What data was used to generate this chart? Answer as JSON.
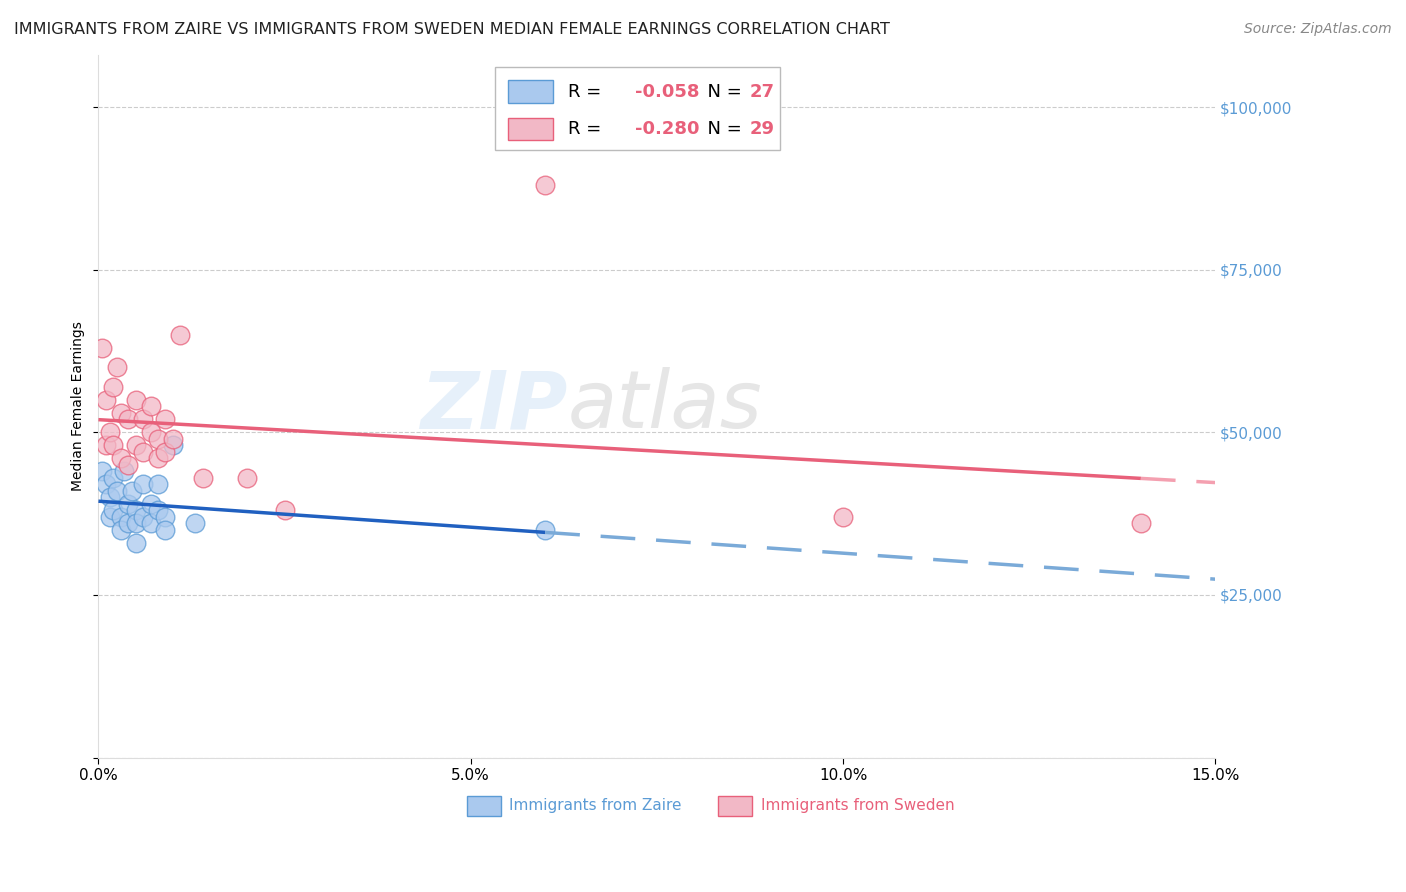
{
  "title": "IMMIGRANTS FROM ZAIRE VS IMMIGRANTS FROM SWEDEN MEDIAN FEMALE EARNINGS CORRELATION CHART",
  "source": "Source: ZipAtlas.com",
  "ylabel": "Median Female Earnings",
  "yticks": [
    0,
    25000,
    50000,
    75000,
    100000
  ],
  "ytick_labels": [
    "",
    "$25,000",
    "$50,000",
    "$75,000",
    "$100,000"
  ],
  "xticks": [
    0.0,
    0.05,
    0.1,
    0.15
  ],
  "xtick_labels": [
    "0.0%",
    "5.0%",
    "10.0%",
    "15.0%"
  ],
  "xlim": [
    0.0,
    0.15
  ],
  "ylim": [
    0,
    108000
  ],
  "watermark_zip": "ZIP",
  "watermark_atlas": "atlas",
  "legend_r1": "-0.058",
  "legend_n1": "27",
  "legend_r2": "-0.280",
  "legend_n2": "29",
  "zaire_fill": "#aac9ee",
  "zaire_edge": "#5b9bd5",
  "sweden_fill": "#f2b8c6",
  "sweden_edge": "#e8607a",
  "line_zaire": "#2060c0",
  "line_sweden": "#e8607a",
  "line_dashed_zaire": "#7aaad8",
  "line_dashed_sweden": "#f4a0b0",
  "background": "#ffffff",
  "grid_color": "#cccccc",
  "axis_right_color": "#5b9bd5",
  "title_color": "#222222",
  "source_color": "#888888",
  "zaire_x": [
    0.0005,
    0.001,
    0.0015,
    0.0015,
    0.002,
    0.002,
    0.0025,
    0.003,
    0.003,
    0.0035,
    0.004,
    0.004,
    0.0045,
    0.005,
    0.005,
    0.005,
    0.006,
    0.006,
    0.007,
    0.007,
    0.008,
    0.008,
    0.009,
    0.009,
    0.01,
    0.013,
    0.06
  ],
  "zaire_y": [
    44000,
    42000,
    40000,
    37000,
    43000,
    38000,
    41000,
    37000,
    35000,
    44000,
    39000,
    36000,
    41000,
    38000,
    36000,
    33000,
    42000,
    37000,
    39000,
    36000,
    42000,
    38000,
    37000,
    35000,
    48000,
    36000,
    35000
  ],
  "sweden_x": [
    0.0005,
    0.001,
    0.001,
    0.0015,
    0.002,
    0.002,
    0.0025,
    0.003,
    0.003,
    0.004,
    0.004,
    0.005,
    0.005,
    0.006,
    0.006,
    0.007,
    0.007,
    0.008,
    0.008,
    0.009,
    0.009,
    0.01,
    0.011,
    0.014,
    0.02,
    0.025,
    0.06,
    0.1,
    0.14
  ],
  "sweden_y": [
    63000,
    55000,
    48000,
    50000,
    57000,
    48000,
    60000,
    53000,
    46000,
    52000,
    45000,
    55000,
    48000,
    52000,
    47000,
    54000,
    50000,
    49000,
    46000,
    52000,
    47000,
    49000,
    65000,
    43000,
    43000,
    38000,
    88000,
    37000,
    36000
  ],
  "title_fontsize": 11.5,
  "source_fontsize": 10,
  "ylabel_fontsize": 10,
  "tick_fontsize": 11,
  "legend_fontsize": 13,
  "watermark_fontsize_zip": 58,
  "watermark_fontsize_atlas": 58,
  "watermark_color_zip": "#c8dff5",
  "watermark_color_atlas": "#c8c8c8",
  "watermark_alpha": 0.45,
  "scatter_size": 180,
  "scatter_alpha": 0.75,
  "scatter_linewidth": 1.0,
  "line_width": 2.5
}
